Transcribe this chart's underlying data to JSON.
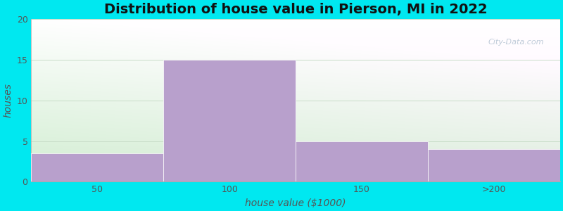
{
  "title": "Distribution of house value in Pierson, MI in 2022",
  "xlabel": "house value ($1000)",
  "ylabel": "houses",
  "categories": [
    "50",
    "100",
    "150",
    ">200"
  ],
  "values": [
    3.5,
    15,
    5,
    4
  ],
  "bar_color": "#b8a0cc",
  "bar_edgecolor": "#b8a0cc",
  "ylim": [
    0,
    20
  ],
  "yticks": [
    0,
    5,
    10,
    15,
    20
  ],
  "background_outer": "#00e8f0",
  "grid_color": "#d0e8d0",
  "title_fontsize": 14,
  "label_fontsize": 10,
  "tick_fontsize": 9,
  "bar_width": 1.0
}
